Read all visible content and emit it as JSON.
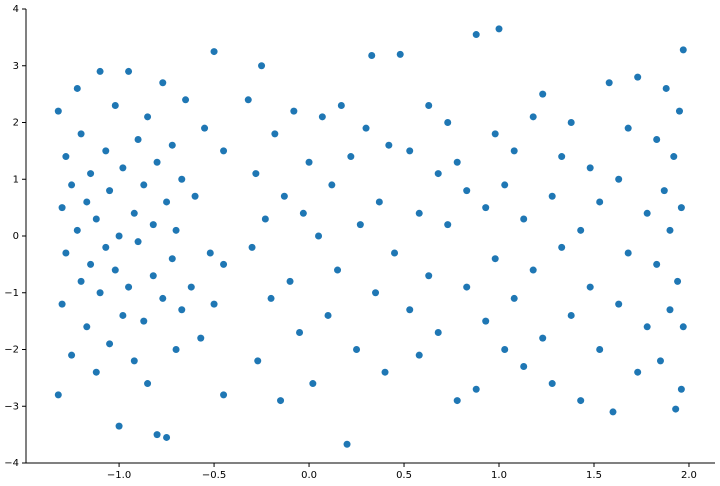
{
  "chart_data": {
    "type": "scatter",
    "color": "#1f77b4",
    "x": [
      -1.32,
      -1.32,
      -1.3,
      -1.3,
      -1.28,
      -1.28,
      -1.25,
      -1.25,
      -1.22,
      -1.22,
      -1.2,
      -1.2,
      -1.17,
      -1.17,
      -1.15,
      -1.15,
      -1.12,
      -1.12,
      -1.1,
      -1.1,
      -1.07,
      -1.07,
      -1.05,
      -1.05,
      -1.02,
      -1.02,
      -1.0,
      -1.0,
      -0.98,
      -0.98,
      -0.95,
      -0.95,
      -0.92,
      -0.92,
      -0.9,
      -0.9,
      -0.87,
      -0.87,
      -0.85,
      -0.85,
      -0.82,
      -0.82,
      -0.8,
      -0.8,
      -0.77,
      -0.77,
      -0.75,
      -0.75,
      -0.72,
      -0.72,
      -0.7,
      -0.7,
      -0.67,
      -0.67,
      -0.65,
      -0.62,
      -0.6,
      -0.57,
      -0.55,
      -0.52,
      -0.5,
      -0.5,
      -0.45,
      -0.45,
      -0.45,
      -0.32,
      -0.3,
      -0.28,
      -0.27,
      -0.25,
      -0.23,
      -0.2,
      -0.18,
      -0.15,
      -0.13,
      -0.1,
      -0.08,
      -0.05,
      -0.03,
      0.0,
      0.02,
      0.05,
      0.07,
      0.1,
      0.12,
      0.15,
      0.17,
      0.2,
      0.22,
      0.25,
      0.27,
      0.3,
      0.33,
      0.35,
      0.37,
      0.4,
      0.42,
      0.45,
      0.48,
      0.53,
      0.53,
      0.58,
      0.58,
      0.63,
      0.63,
      0.68,
      0.68,
      0.73,
      0.73,
      0.78,
      0.78,
      0.83,
      0.83,
      0.88,
      0.88,
      0.93,
      0.93,
      0.98,
      0.98,
      1.0,
      1.03,
      1.03,
      1.08,
      1.08,
      1.13,
      1.13,
      1.18,
      1.18,
      1.23,
      1.23,
      1.28,
      1.28,
      1.33,
      1.33,
      1.38,
      1.38,
      1.43,
      1.43,
      1.48,
      1.48,
      1.53,
      1.53,
      1.58,
      1.6,
      1.63,
      1.63,
      1.68,
      1.68,
      1.73,
      1.73,
      1.78,
      1.78,
      1.83,
      1.83,
      1.85,
      1.87,
      1.88,
      1.9,
      1.9,
      1.92,
      1.93,
      1.94,
      1.95,
      1.96,
      1.96,
      1.97,
      1.97
    ],
    "values": [
      2.2,
      -2.8,
      0.5,
      -1.2,
      1.4,
      -0.3,
      0.9,
      -2.1,
      2.6,
      0.1,
      -0.8,
      1.8,
      -1.6,
      0.6,
      1.1,
      -0.5,
      -2.4,
      0.3,
      2.9,
      -1.0,
      1.5,
      -0.2,
      0.8,
      -1.9,
      2.3,
      -0.6,
      0.0,
      -3.35,
      1.2,
      -1.4,
      2.9,
      -0.9,
      0.4,
      -2.2,
      1.7,
      -0.1,
      -1.5,
      0.9,
      2.1,
      -2.6,
      0.2,
      -0.7,
      1.3,
      -3.5,
      -1.1,
      2.7,
      0.6,
      -3.55,
      -0.4,
      1.6,
      -2.0,
      0.1,
      1.0,
      -1.3,
      2.4,
      -0.9,
      0.7,
      -1.8,
      1.9,
      -0.3,
      3.25,
      -1.2,
      1.5,
      -0.5,
      -2.8,
      2.4,
      -0.2,
      1.1,
      -2.2,
      3.0,
      0.3,
      -1.1,
      1.8,
      -2.9,
      0.7,
      -0.8,
      2.2,
      -1.7,
      0.4,
      1.3,
      -2.6,
      0.0,
      2.1,
      -1.4,
      0.9,
      -0.6,
      2.3,
      -3.67,
      1.4,
      -2.0,
      0.2,
      1.9,
      3.18,
      -1.0,
      0.6,
      -2.4,
      1.6,
      -0.3,
      3.2,
      1.5,
      -1.3,
      0.4,
      -2.1,
      2.3,
      -0.7,
      1.1,
      -1.7,
      2.0,
      0.2,
      -2.9,
      1.3,
      -0.9,
      0.8,
      3.55,
      -2.7,
      0.5,
      -1.5,
      1.8,
      -0.4,
      3.65,
      -2.0,
      0.9,
      1.5,
      -1.1,
      -2.3,
      0.3,
      2.1,
      -0.6,
      -1.8,
      2.5,
      0.7,
      -2.6,
      1.4,
      -0.2,
      -1.4,
      2.0,
      0.1,
      -2.9,
      1.2,
      -0.9,
      -2.0,
      0.6,
      2.7,
      -3.1,
      1.0,
      -1.2,
      -0.3,
      1.9,
      2.8,
      -2.4,
      0.4,
      -1.6,
      1.7,
      -0.5,
      -2.2,
      0.8,
      2.6,
      -1.3,
      0.1,
      1.4,
      -3.05,
      -0.8,
      2.2,
      0.5,
      -2.7,
      3.28,
      -1.6
    ],
    "xlim": [
      -1.49,
      2.137
    ],
    "ylim": [
      -4,
      4
    ],
    "xticks": [
      {
        "value": -1.0,
        "label": "−1.0"
      },
      {
        "value": -0.5,
        "label": "−0.5"
      },
      {
        "value": 0.0,
        "label": "0.0"
      },
      {
        "value": 0.5,
        "label": "0.5"
      },
      {
        "value": 1.0,
        "label": "1.0"
      },
      {
        "value": 1.5,
        "label": "1.5"
      },
      {
        "value": 2.0,
        "label": "2.0"
      }
    ],
    "yticks": [
      {
        "value": -4,
        "label": "−4"
      },
      {
        "value": -3,
        "label": "−3"
      },
      {
        "value": -2,
        "label": "−2"
      },
      {
        "value": -1,
        "label": "−1"
      },
      0,
      1,
      2,
      3,
      4
    ]
  }
}
